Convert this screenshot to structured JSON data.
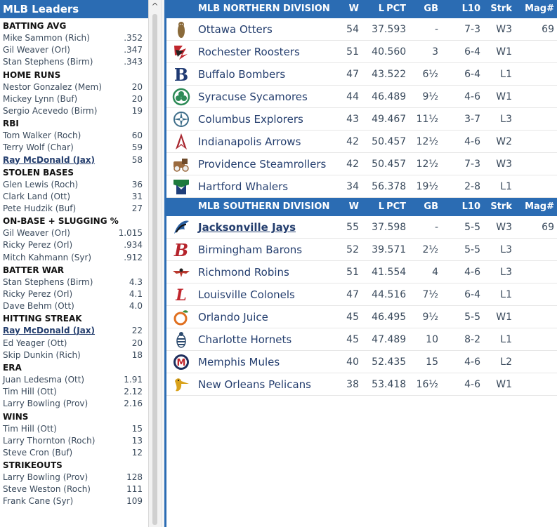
{
  "leaders": {
    "title": "MLB Leaders",
    "categories": [
      {
        "title": "BATTING AVG",
        "rows": [
          {
            "name": "Mike Sammon (Rich)",
            "value": ".352",
            "link": false
          },
          {
            "name": "Gil Weaver (Orl)",
            "value": ".347",
            "link": false
          },
          {
            "name": "Stan Stephens (Birm)",
            "value": ".343",
            "link": false
          }
        ]
      },
      {
        "title": "HOME RUNS",
        "rows": [
          {
            "name": "Nestor Gonzalez (Mem)",
            "value": "20",
            "link": false
          },
          {
            "name": "Mickey Lynn (Buf)",
            "value": "20",
            "link": false
          },
          {
            "name": "Sergio Acevedo (Birm)",
            "value": "19",
            "link": false
          }
        ]
      },
      {
        "title": "RBI",
        "rows": [
          {
            "name": "Tom Walker (Roch)",
            "value": "60",
            "link": false
          },
          {
            "name": "Terry Wolf (Char)",
            "value": "59",
            "link": false
          },
          {
            "name": "Ray McDonald (Jax)",
            "value": "58",
            "link": true
          }
        ]
      },
      {
        "title": "STOLEN BASES",
        "rows": [
          {
            "name": "Glen Lewis (Roch)",
            "value": "36",
            "link": false
          },
          {
            "name": "Clark Land (Ott)",
            "value": "31",
            "link": false
          },
          {
            "name": "Pete Hudzik (Buf)",
            "value": "27",
            "link": false
          }
        ]
      },
      {
        "title": "ON-BASE + SLUGGING %",
        "rows": [
          {
            "name": "Gil Weaver (Orl)",
            "value": "1.015",
            "link": false
          },
          {
            "name": "Ricky Perez (Orl)",
            "value": ".934",
            "link": false
          },
          {
            "name": "Mitch Kahmann (Syr)",
            "value": ".912",
            "link": false
          }
        ]
      },
      {
        "title": "BATTER WAR",
        "rows": [
          {
            "name": "Stan Stephens (Birm)",
            "value": "4.3",
            "link": false
          },
          {
            "name": "Ricky Perez (Orl)",
            "value": "4.1",
            "link": false
          },
          {
            "name": "Dave Behm (Ott)",
            "value": "4.0",
            "link": false
          }
        ]
      },
      {
        "title": "HITTING STREAK",
        "rows": [
          {
            "name": "Ray McDonald (Jax)",
            "value": "22",
            "link": true
          },
          {
            "name": "Ed Yeager (Ott)",
            "value": "20",
            "link": false
          },
          {
            "name": "Skip Dunkin (Rich)",
            "value": "18",
            "link": false
          }
        ]
      },
      {
        "title": "ERA",
        "rows": [
          {
            "name": "Juan Ledesma (Ott)",
            "value": "1.91",
            "link": false
          },
          {
            "name": "Tim Hill (Ott)",
            "value": "2.12",
            "link": false
          },
          {
            "name": "Larry Bowling (Prov)",
            "value": "2.16",
            "link": false
          }
        ]
      },
      {
        "title": "WINS",
        "rows": [
          {
            "name": "Tim Hill (Ott)",
            "value": "15",
            "link": false
          },
          {
            "name": "Larry Thornton (Roch)",
            "value": "13",
            "link": false
          },
          {
            "name": "Steve Cron (Buf)",
            "value": "12",
            "link": false
          }
        ]
      },
      {
        "title": "STRIKEOUTS",
        "rows": [
          {
            "name": "Larry Bowling (Prov)",
            "value": "128",
            "link": false
          },
          {
            "name": "Steve Weston (Roch)",
            "value": "111",
            "link": false
          },
          {
            "name": "Frank Cane (Syr)",
            "value": "109",
            "link": false
          }
        ]
      }
    ]
  },
  "columns": {
    "w": "W",
    "l": "L",
    "pct": "PCT",
    "gb": "GB",
    "l10": "L10",
    "strk": "Strk",
    "mag": "Mag#"
  },
  "divisions": [
    {
      "title": "MLB NORTHERN DIVISION",
      "teams": [
        {
          "name": "Ottawa Otters",
          "w": "54",
          "l": "37",
          "pct": ".593",
          "gb": "-",
          "l10": "7-3",
          "strk": "W3",
          "mag": "69",
          "link": false,
          "logo": "otter-logo-icon",
          "color": "#8a6a3a"
        },
        {
          "name": "Rochester Roosters",
          "w": "51",
          "l": "40",
          "pct": ".560",
          "gb": "3",
          "l10": "6-4",
          "strk": "W1",
          "mag": "",
          "link": false,
          "logo": "rooster-logo-icon",
          "color": "#c0262d"
        },
        {
          "name": "Buffalo Bombers",
          "w": "47",
          "l": "43",
          "pct": ".522",
          "gb": "6½",
          "l10": "6-4",
          "strk": "L1",
          "mag": "",
          "link": false,
          "logo": "bombers-b-logo-icon",
          "color": "#1f3a73"
        },
        {
          "name": "Syracuse Sycamores",
          "w": "44",
          "l": "46",
          "pct": ".489",
          "gb": "9½",
          "l10": "4-6",
          "strk": "W1",
          "mag": "",
          "link": false,
          "logo": "sycamore-logo-icon",
          "color": "#2e8b57"
        },
        {
          "name": "Columbus Explorers",
          "w": "43",
          "l": "49",
          "pct": ".467",
          "gb": "11½",
          "l10": "3-7",
          "strk": "L3",
          "mag": "",
          "link": false,
          "logo": "compass-logo-icon",
          "color": "#3f6e8a"
        },
        {
          "name": "Indianapolis Arrows",
          "w": "42",
          "l": "50",
          "pct": ".457",
          "gb": "12½",
          "l10": "4-6",
          "strk": "W2",
          "mag": "",
          "link": false,
          "logo": "arrow-logo-icon",
          "color": "#a8262e"
        },
        {
          "name": "Providence Steamrollers",
          "w": "42",
          "l": "50",
          "pct": ".457",
          "gb": "12½",
          "l10": "7-3",
          "strk": "W3",
          "mag": "",
          "link": false,
          "logo": "steamroller-logo-icon",
          "color": "#9b6a3e"
        },
        {
          "name": "Hartford Whalers",
          "w": "34",
          "l": "56",
          "pct": ".378",
          "gb": "19½",
          "l10": "2-8",
          "strk": "L1",
          "mag": "",
          "link": false,
          "logo": "whaler-logo-icon",
          "color": "#1e7a3c"
        }
      ]
    },
    {
      "title": "MLB SOUTHERN DIVISION",
      "teams": [
        {
          "name": "Jacksonville Jays",
          "w": "55",
          "l": "37",
          "pct": ".598",
          "gb": "-",
          "l10": "5-5",
          "strk": "W3",
          "mag": "69",
          "link": true,
          "logo": "jay-logo-icon",
          "color": "#2a5fa0"
        },
        {
          "name": "Birmingham Barons",
          "w": "52",
          "l": "39",
          "pct": ".571",
          "gb": "2½",
          "l10": "5-5",
          "strk": "L3",
          "mag": "",
          "link": false,
          "logo": "barons-b-logo-icon",
          "color": "#b5232b"
        },
        {
          "name": "Richmond Robins",
          "w": "51",
          "l": "41",
          "pct": ".554",
          "gb": "4",
          "l10": "4-6",
          "strk": "L3",
          "mag": "",
          "link": false,
          "logo": "robin-logo-icon",
          "color": "#b8372d"
        },
        {
          "name": "Louisville Colonels",
          "w": "47",
          "l": "44",
          "pct": ".516",
          "gb": "7½",
          "l10": "6-4",
          "strk": "L1",
          "mag": "",
          "link": false,
          "logo": "colonels-l-logo-icon",
          "color": "#c0262d"
        },
        {
          "name": "Orlando Juice",
          "w": "45",
          "l": "46",
          "pct": ".495",
          "gb": "9½",
          "l10": "5-5",
          "strk": "W1",
          "mag": "",
          "link": false,
          "logo": "orange-logo-icon",
          "color": "#e07020"
        },
        {
          "name": "Charlotte Hornets",
          "w": "45",
          "l": "47",
          "pct": ".489",
          "gb": "10",
          "l10": "8-2",
          "strk": "L1",
          "mag": "",
          "link": false,
          "logo": "hornet-logo-icon",
          "color": "#2c4a6e"
        },
        {
          "name": "Memphis Mules",
          "w": "40",
          "l": "52",
          "pct": ".435",
          "gb": "15",
          "l10": "4-6",
          "strk": "L2",
          "mag": "",
          "link": false,
          "logo": "mules-m-logo-icon",
          "color": "#1d2d5c"
        },
        {
          "name": "New Orleans Pelicans",
          "w": "38",
          "l": "53",
          "pct": ".418",
          "gb": "16½",
          "l10": "4-6",
          "strk": "W1",
          "mag": "",
          "link": false,
          "logo": "pelican-logo-icon",
          "color": "#d9a21b"
        }
      ]
    }
  ]
}
